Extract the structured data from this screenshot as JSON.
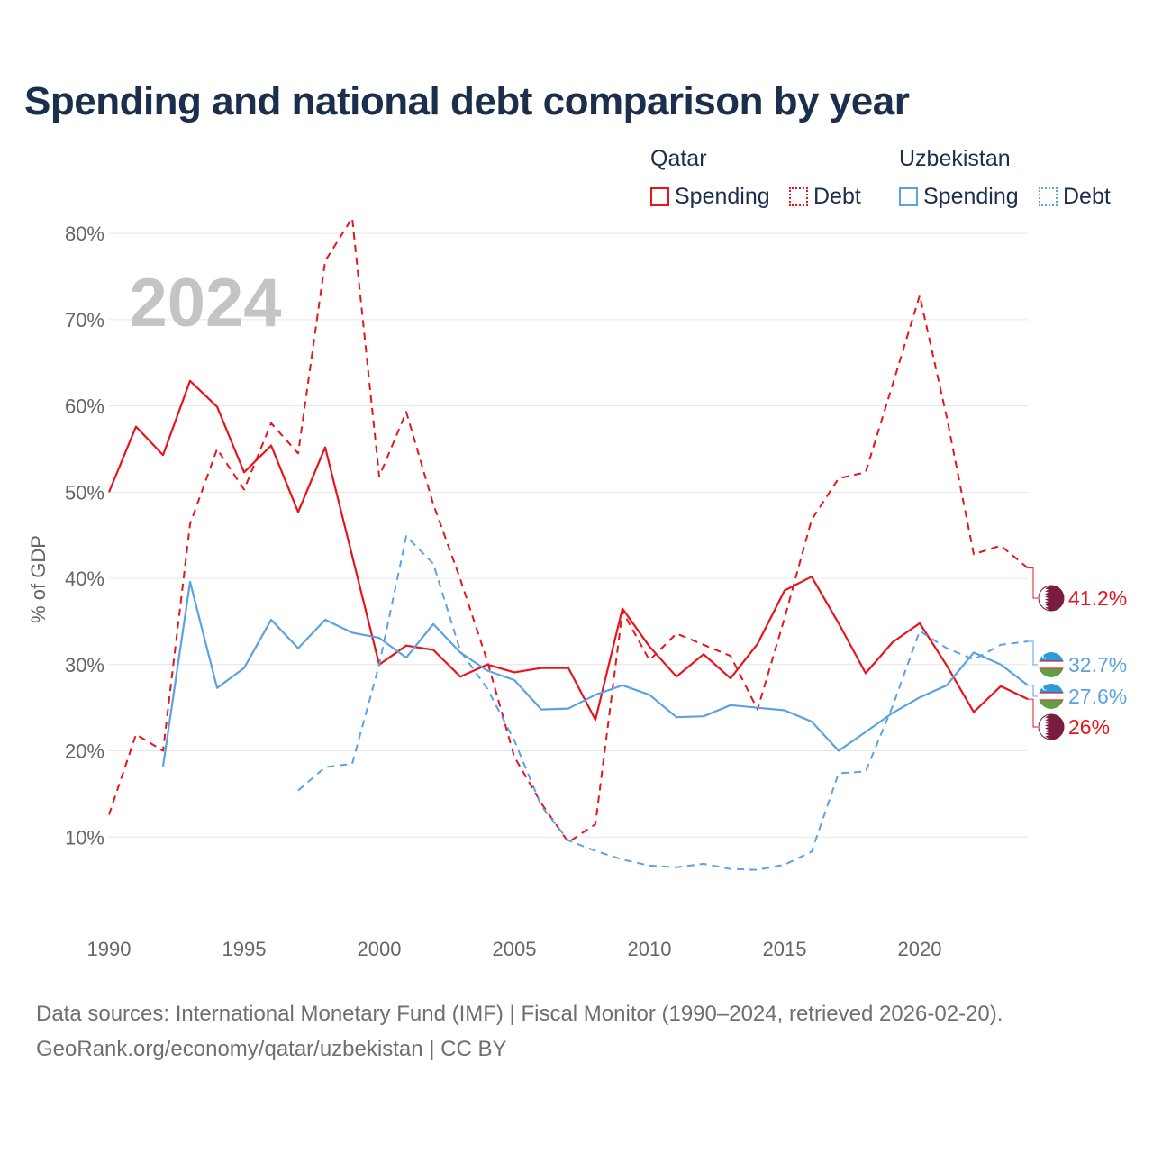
{
  "title": "Spending and national debt comparison by year",
  "legend": {
    "groups": [
      {
        "name": "Qatar",
        "color": "#e8141c",
        "items": [
          {
            "label": "Spending",
            "style": "solid"
          },
          {
            "label": "Debt",
            "style": "dotted"
          }
        ]
      },
      {
        "name": "Uzbekistan",
        "color": "#5aa2e2",
        "items": [
          {
            "label": "Spending",
            "style": "solid"
          },
          {
            "label": "Debt",
            "style": "dotted"
          }
        ]
      }
    ]
  },
  "footer": {
    "line1": "Data sources: International Monetary Fund (IMF) | Fiscal Monitor (1990–2024, retrieved 2026-02-20).",
    "line2": "GeoRank.org/economy/qatar/uzbekistan | CC BY"
  },
  "chart_data": {
    "type": "line",
    "title": "Spending and national debt comparison by year",
    "year_watermark": "2024",
    "xlabel": "",
    "ylabel": "% of GDP",
    "xlim": [
      1990,
      2024
    ],
    "ylim": [
      0,
      82
    ],
    "x_ticks": [
      1990,
      1995,
      2000,
      2005,
      2010,
      2015,
      2020
    ],
    "y_ticks": [
      10,
      20,
      30,
      40,
      50,
      60,
      70,
      80
    ],
    "y_tick_labels": [
      "10%",
      "20%",
      "30%",
      "40%",
      "50%",
      "60%",
      "70%",
      "80%"
    ],
    "grid": true,
    "series": [
      {
        "name": "Qatar Spending",
        "country": "Qatar",
        "color": "#e8141c",
        "dash": false,
        "x": [
          1990,
          1991,
          1992,
          1993,
          1994,
          1995,
          1996,
          1997,
          1998,
          1999,
          2000,
          2001,
          2002,
          2003,
          2004,
          2005,
          2006,
          2007,
          2008,
          2009,
          2010,
          2011,
          2012,
          2013,
          2014,
          2015,
          2016,
          2017,
          2018,
          2019,
          2020,
          2021,
          2022,
          2023,
          2024
        ],
        "values": [
          50.0,
          57.6,
          54.3,
          62.9,
          59.9,
          52.3,
          55.4,
          47.7,
          55.2,
          42.6,
          30.0,
          32.2,
          31.7,
          28.6,
          30.0,
          29.1,
          29.6,
          29.6,
          23.6,
          36.5,
          32.1,
          28.6,
          31.2,
          28.4,
          32.4,
          38.6,
          40.2,
          34.8,
          29.0,
          32.6,
          34.8,
          29.9,
          24.5,
          27.5,
          26.0
        ],
        "end_label": "26%"
      },
      {
        "name": "Qatar Debt",
        "country": "Qatar",
        "color": "#e8141c",
        "dash": true,
        "x": [
          1990,
          1991,
          1992,
          1993,
          1994,
          1995,
          1996,
          1997,
          1998,
          1999,
          2000,
          2001,
          2002,
          2003,
          2004,
          2005,
          2006,
          2007,
          2008,
          2009,
          2010,
          2011,
          2012,
          2013,
          2014,
          2015,
          2016,
          2017,
          2018,
          2019,
          2020,
          2021,
          2022,
          2023,
          2024
        ],
        "values": [
          12.6,
          21.9,
          20.0,
          46.3,
          55.0,
          50.3,
          58.0,
          54.5,
          76.8,
          81.8,
          51.8,
          59.3,
          48.6,
          39.9,
          30.4,
          19.3,
          13.9,
          9.4,
          11.5,
          36.2,
          30.5,
          33.6,
          32.3,
          31.0,
          24.8,
          35.4,
          46.8,
          51.6,
          52.3,
          62.5,
          72.8,
          58.7,
          42.8,
          43.8,
          41.2
        ],
        "end_label": "41.2%"
      },
      {
        "name": "Uzbekistan Spending",
        "country": "Uzbekistan",
        "color": "#5aa2e2",
        "dash": false,
        "x": [
          1992,
          1993,
          1994,
          1995,
          1996,
          1997,
          1998,
          1999,
          2000,
          2001,
          2002,
          2003,
          2004,
          2005,
          2006,
          2007,
          2008,
          2009,
          2010,
          2011,
          2012,
          2013,
          2014,
          2015,
          2016,
          2017,
          2018,
          2019,
          2020,
          2021,
          2022,
          2023,
          2024
        ],
        "values": [
          18.2,
          39.6,
          27.3,
          29.6,
          35.2,
          31.9,
          35.2,
          33.7,
          33.1,
          30.8,
          34.7,
          31.4,
          29.3,
          28.2,
          24.8,
          24.9,
          26.5,
          27.6,
          26.5,
          23.9,
          24.0,
          25.3,
          25.0,
          24.7,
          23.4,
          20.0,
          22.2,
          24.4,
          26.2,
          27.6,
          31.4,
          30.0,
          27.6
        ],
        "end_label": "27.6%"
      },
      {
        "name": "Uzbekistan Debt",
        "country": "Uzbekistan",
        "color": "#5aa2e2",
        "dash": true,
        "x": [
          1997,
          1998,
          1999,
          2000,
          2001,
          2002,
          2003,
          2004,
          2005,
          2006,
          2007,
          2008,
          2009,
          2010,
          2011,
          2012,
          2013,
          2014,
          2015,
          2016,
          2017,
          2018,
          2019,
          2020,
          2021,
          2022,
          2023,
          2024
        ],
        "values": [
          15.4,
          18.1,
          18.5,
          30.0,
          44.9,
          41.7,
          31.6,
          27.2,
          21.2,
          13.6,
          9.6,
          8.4,
          7.4,
          6.7,
          6.5,
          6.9,
          6.3,
          6.2,
          6.8,
          8.3,
          17.4,
          17.6,
          25.2,
          33.9,
          31.9,
          30.6,
          32.3,
          32.7
        ],
        "end_label": "32.7%"
      }
    ]
  }
}
